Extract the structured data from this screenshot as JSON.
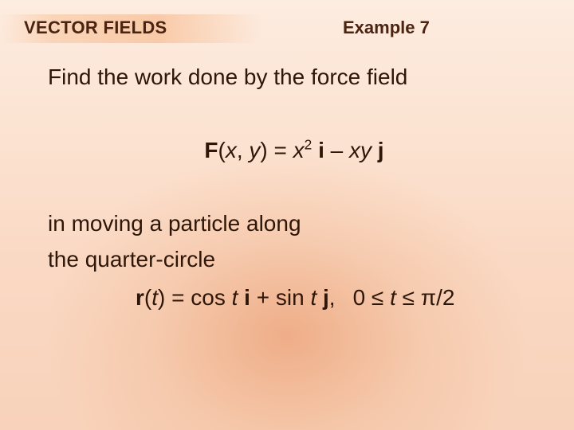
{
  "colors": {
    "text": "#2e1608",
    "heading": "#4a2410",
    "bg_top": "#fdece0",
    "bg_bottom": "#f8d2ba",
    "glow_center": "rgba(230,140,90,0.55)",
    "header_band": "rgba(248,200,165,0.95)"
  },
  "typography": {
    "font_family": "Arial",
    "heading_fontsize_pt": 17,
    "heading_weight": "bold",
    "body_fontsize_pt": 21,
    "sup_scale": 0.62
  },
  "header": {
    "section_title": "VECTOR FIELDS",
    "example_label": "Example 7"
  },
  "content": {
    "line1": "Find the work done by the force field",
    "eq_F_pre": "F",
    "eq_F_args_open": "(",
    "eq_F_x": "x",
    "eq_F_comma": ", ",
    "eq_F_y": "y",
    "eq_F_args_close": ") = ",
    "eq_F_x2_base": "x",
    "eq_F_x2_exp": "2",
    "eq_F_sp1": " ",
    "eq_F_i": "i",
    "eq_F_minus": " – ",
    "eq_F_xy": "xy",
    "eq_F_sp2": " ",
    "eq_F_j": "j",
    "line2": "in moving a particle along",
    "line3": "the quarter-circle",
    "eq_r_pre": "r",
    "eq_r_args_open": "(",
    "eq_r_t": "t",
    "eq_r_args_close": ") = cos ",
    "eq_r_t2": "t",
    "eq_r_sp1": " ",
    "eq_r_i": "i",
    "eq_r_plus": " + sin ",
    "eq_r_t3": "t",
    "eq_r_sp2": " ",
    "eq_r_j": "j",
    "eq_r_comma": ",",
    "range_lhs": "0 ≤ ",
    "range_t": "t",
    "range_rhs": " ≤ π/2"
  }
}
